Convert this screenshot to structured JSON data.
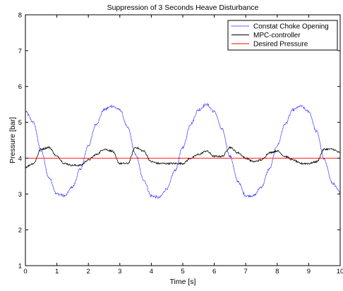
{
  "chart_data": {
    "type": "line",
    "title": "Suppression of 3 Seconds Heave Disturbance",
    "xlabel": "Time [s]",
    "ylabel": "Pressure [bar]",
    "xlim": [
      0,
      10
    ],
    "ylim": [
      1,
      8
    ],
    "xticks": [
      0,
      1,
      2,
      3,
      4,
      5,
      6,
      7,
      8,
      9,
      10
    ],
    "yticks": [
      1,
      2,
      3,
      4,
      5,
      6,
      7,
      8
    ],
    "grid": false,
    "legend_position": "top-right",
    "series": [
      {
        "name": "Constat Choke Opening",
        "color": "#0000ff",
        "style": "dotted",
        "x": [
          0,
          0.25,
          0.5,
          0.75,
          1.0,
          1.25,
          1.5,
          1.75,
          2.0,
          2.25,
          2.5,
          2.75,
          3.0,
          3.25,
          3.5,
          3.75,
          4.0,
          4.25,
          4.5,
          4.75,
          5.0,
          5.25,
          5.5,
          5.75,
          6.0,
          6.25,
          6.5,
          6.75,
          7.0,
          7.25,
          7.5,
          7.75,
          8.0,
          8.25,
          8.5,
          8.75,
          9.0,
          9.25,
          9.5,
          9.75,
          10.0
        ],
        "values": [
          5.3,
          5.0,
          4.2,
          3.45,
          3.0,
          2.95,
          3.2,
          3.7,
          4.35,
          4.95,
          5.35,
          5.45,
          5.35,
          4.85,
          4.1,
          3.4,
          2.95,
          2.9,
          3.15,
          3.65,
          4.3,
          4.95,
          5.35,
          5.5,
          5.3,
          4.8,
          4.05,
          3.35,
          2.95,
          2.95,
          3.2,
          3.7,
          4.35,
          4.95,
          5.35,
          5.45,
          5.3,
          4.75,
          3.95,
          3.3,
          3.05
        ]
      },
      {
        "name": "MPC-controller",
        "color": "#000000",
        "style": "solid",
        "x": [
          0,
          0.25,
          0.5,
          0.75,
          1.0,
          1.25,
          1.5,
          1.75,
          2.0,
          2.25,
          2.5,
          2.75,
          3.0,
          3.25,
          3.5,
          3.75,
          4.0,
          4.25,
          4.5,
          4.75,
          5.0,
          5.25,
          5.5,
          5.75,
          6.0,
          6.25,
          6.5,
          6.75,
          7.0,
          7.25,
          7.5,
          7.75,
          8.0,
          8.25,
          8.5,
          8.75,
          9.0,
          9.25,
          9.5,
          9.75,
          10.0
        ],
        "values": [
          3.75,
          3.85,
          4.25,
          4.3,
          4.05,
          3.85,
          3.8,
          3.8,
          3.95,
          4.1,
          4.25,
          4.2,
          3.85,
          3.85,
          4.3,
          4.2,
          3.9,
          3.85,
          3.85,
          3.85,
          3.85,
          4.0,
          4.1,
          4.2,
          4.05,
          4.05,
          4.3,
          4.15,
          4.0,
          3.9,
          3.95,
          4.15,
          4.2,
          4.05,
          3.95,
          3.85,
          3.85,
          3.9,
          4.25,
          4.25,
          4.15
        ]
      },
      {
        "name": "Desired Pressure",
        "color": "#ff0000",
        "style": "solid",
        "x": [
          0,
          10
        ],
        "values": [
          4.0,
          4.0
        ]
      }
    ]
  }
}
